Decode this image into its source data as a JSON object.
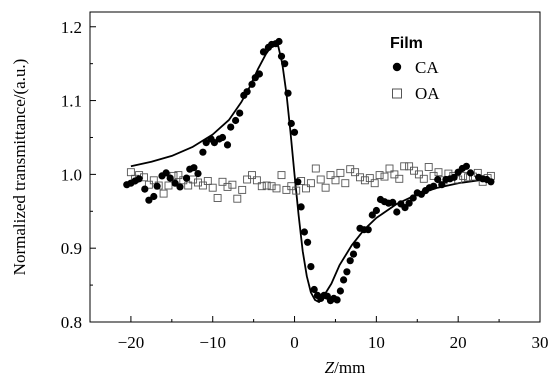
{
  "chart_data": {
    "type": "scatter",
    "xlabel_italic": "Z",
    "xlabel_rest": "/mm",
    "ylabel": "Normalized transmittance/(a.u.)",
    "xlim": [
      -25,
      30
    ],
    "ylim": [
      0.8,
      1.22
    ],
    "x_ticks": [
      -20,
      -10,
      0,
      10,
      20,
      30
    ],
    "x_tick_labels": [
      "−20",
      "−10",
      "0",
      "10",
      "20",
      "30"
    ],
    "y_ticks": [
      0.8,
      0.9,
      1.0,
      1.1,
      1.2
    ],
    "y_tick_labels": [
      "0.8",
      "0.9",
      "1.0",
      "1.1",
      "1.2"
    ],
    "legend": {
      "title": "Film",
      "placement": "top-right",
      "entries": [
        {
          "label": "CA",
          "marker": "filled-circle"
        },
        {
          "label": "OA",
          "marker": "open-square"
        }
      ]
    },
    "series": [
      {
        "name": "CA",
        "marker": "filled-circle",
        "color": "#000000",
        "points": [
          [
            -20.5,
            0.986
          ],
          [
            -20.0,
            0.988
          ],
          [
            -19.5,
            0.991
          ],
          [
            -19.0,
            0.994
          ],
          [
            -18.3,
            0.98
          ],
          [
            -17.8,
            0.965
          ],
          [
            -17.2,
            0.97
          ],
          [
            -16.8,
            0.984
          ],
          [
            -16.2,
            0.998
          ],
          [
            -15.7,
            1.002
          ],
          [
            -15.2,
            0.995
          ],
          [
            -14.6,
            0.988
          ],
          [
            -14.0,
            0.983
          ],
          [
            -13.2,
            0.995
          ],
          [
            -12.8,
            1.007
          ],
          [
            -12.3,
            1.009
          ],
          [
            -11.8,
            1.001
          ],
          [
            -11.2,
            1.03
          ],
          [
            -10.8,
            1.043
          ],
          [
            -10.2,
            1.048
          ],
          [
            -9.8,
            1.043
          ],
          [
            -9.2,
            1.048
          ],
          [
            -8.8,
            1.05
          ],
          [
            -8.2,
            1.04
          ],
          [
            -7.8,
            1.064
          ],
          [
            -7.2,
            1.073
          ],
          [
            -6.7,
            1.083
          ],
          [
            -6.2,
            1.107
          ],
          [
            -5.8,
            1.112
          ],
          [
            -5.2,
            1.122
          ],
          [
            -4.8,
            1.131
          ],
          [
            -4.3,
            1.136
          ],
          [
            -3.8,
            1.166
          ],
          [
            -3.2,
            1.172
          ],
          [
            -2.8,
            1.176
          ],
          [
            -2.3,
            1.177
          ],
          [
            -1.9,
            1.18
          ],
          [
            -1.6,
            1.16
          ],
          [
            -1.2,
            1.15
          ],
          [
            -0.8,
            1.11
          ],
          [
            -0.4,
            1.069
          ],
          [
            0.0,
            1.057
          ],
          [
            0.4,
            0.99
          ],
          [
            0.8,
            0.956
          ],
          [
            1.2,
            0.922
          ],
          [
            1.6,
            0.908
          ],
          [
            2.0,
            0.875
          ],
          [
            2.4,
            0.844
          ],
          [
            2.8,
            0.836
          ],
          [
            3.2,
            0.832
          ],
          [
            3.6,
            0.836
          ],
          [
            4.0,
            0.835
          ],
          [
            4.4,
            0.829
          ],
          [
            4.8,
            0.832
          ],
          [
            5.2,
            0.83
          ],
          [
            5.6,
            0.842
          ],
          [
            6.0,
            0.857
          ],
          [
            6.4,
            0.868
          ],
          [
            6.8,
            0.883
          ],
          [
            7.2,
            0.892
          ],
          [
            7.6,
            0.904
          ],
          [
            8.0,
            0.927
          ],
          [
            8.5,
            0.925
          ],
          [
            9.0,
            0.925
          ],
          [
            9.5,
            0.945
          ],
          [
            10.0,
            0.951
          ],
          [
            10.5,
            0.966
          ],
          [
            11.0,
            0.963
          ],
          [
            11.5,
            0.961
          ],
          [
            12.0,
            0.962
          ],
          [
            12.5,
            0.949
          ],
          [
            13.0,
            0.96
          ],
          [
            13.5,
            0.955
          ],
          [
            14.0,
            0.961
          ],
          [
            14.5,
            0.968
          ],
          [
            15.0,
            0.975
          ],
          [
            15.5,
            0.973
          ],
          [
            16.0,
            0.978
          ],
          [
            16.5,
            0.982
          ],
          [
            17.0,
            0.984
          ],
          [
            17.5,
            0.993
          ],
          [
            18.0,
            0.986
          ],
          [
            18.5,
            0.993
          ],
          [
            19.0,
            0.994
          ],
          [
            19.5,
            0.996
          ],
          [
            20.0,
            1.003
          ],
          [
            20.5,
            1.008
          ],
          [
            21.0,
            1.011
          ],
          [
            21.5,
            1.002
          ],
          [
            22.5,
            0.996
          ],
          [
            23.0,
            0.994
          ],
          [
            23.5,
            0.993
          ],
          [
            24.0,
            0.99
          ]
        ]
      },
      {
        "name": "OA",
        "marker": "open-square",
        "color": "#555555",
        "points": [
          [
            -20.0,
            1.003
          ],
          [
            -19.5,
            0.994
          ],
          [
            -19.0,
            0.999
          ],
          [
            -18.4,
            0.996
          ],
          [
            -17.8,
            0.986
          ],
          [
            -17.2,
            0.992
          ],
          [
            -16.6,
            0.985
          ],
          [
            -16.0,
            0.974
          ],
          [
            -15.4,
            0.985
          ],
          [
            -14.8,
            0.998
          ],
          [
            -14.2,
            0.999
          ],
          [
            -13.6,
            0.992
          ],
          [
            -13.0,
            0.985
          ],
          [
            -12.4,
            0.993
          ],
          [
            -11.8,
            0.989
          ],
          [
            -11.2,
            0.985
          ],
          [
            -10.6,
            0.991
          ],
          [
            -10.0,
            0.982
          ],
          [
            -9.4,
            0.968
          ],
          [
            -8.8,
            0.99
          ],
          [
            -8.2,
            0.983
          ],
          [
            -7.6,
            0.986
          ],
          [
            -7.0,
            0.967
          ],
          [
            -6.4,
            0.979
          ],
          [
            -5.8,
            0.993
          ],
          [
            -5.2,
            0.999
          ],
          [
            -4.6,
            0.992
          ],
          [
            -4.0,
            0.984
          ],
          [
            -3.4,
            0.985
          ],
          [
            -2.8,
            0.984
          ],
          [
            -2.2,
            0.981
          ],
          [
            -1.6,
            0.999
          ],
          [
            -1.0,
            0.979
          ],
          [
            -0.4,
            0.984
          ],
          [
            0.2,
            0.978
          ],
          [
            0.8,
            0.991
          ],
          [
            1.4,
            0.981
          ],
          [
            2.0,
            0.988
          ],
          [
            2.6,
            1.008
          ],
          [
            3.2,
            0.993
          ],
          [
            3.8,
            0.982
          ],
          [
            4.4,
            0.999
          ],
          [
            5.0,
            0.992
          ],
          [
            5.6,
            1.002
          ],
          [
            6.2,
            0.988
          ],
          [
            6.8,
            1.007
          ],
          [
            7.4,
            1.003
          ],
          [
            8.0,
            0.996
          ],
          [
            8.6,
            0.992
          ],
          [
            9.2,
            0.995
          ],
          [
            9.8,
            0.988
          ],
          [
            10.4,
            0.999
          ],
          [
            11.0,
            0.997
          ],
          [
            11.6,
            1.008
          ],
          [
            12.2,
            1.0
          ],
          [
            12.8,
            0.994
          ],
          [
            13.4,
            1.011
          ],
          [
            14.0,
            1.011
          ],
          [
            14.6,
            1.005
          ],
          [
            15.2,
            1.0
          ],
          [
            15.8,
            0.994
          ],
          [
            16.4,
            1.01
          ],
          [
            17.0,
            0.998
          ],
          [
            17.6,
            1.003
          ],
          [
            18.2,
            0.992
          ],
          [
            18.8,
            1.001
          ],
          [
            19.4,
            0.998
          ],
          [
            20.0,
            0.993
          ],
          [
            20.6,
            0.998
          ],
          [
            21.2,
            0.996
          ],
          [
            21.8,
            0.997
          ],
          [
            22.4,
            1.002
          ],
          [
            23.0,
            0.99
          ],
          [
            23.6,
            0.995
          ],
          [
            24.0,
            0.998
          ]
        ]
      },
      {
        "name": "CA fit",
        "style": "solid-line",
        "color": "#000000",
        "points": [
          [
            -20.0,
            1.011
          ],
          [
            -17.5,
            1.017
          ],
          [
            -15.0,
            1.025
          ],
          [
            -12.5,
            1.037
          ],
          [
            -10.0,
            1.054
          ],
          [
            -8.0,
            1.074
          ],
          [
            -6.5,
            1.098
          ],
          [
            -5.5,
            1.118
          ],
          [
            -4.5,
            1.142
          ],
          [
            -3.5,
            1.163
          ],
          [
            -2.8,
            1.174
          ],
          [
            -2.3,
            1.179
          ],
          [
            -2.0,
            1.174
          ],
          [
            -1.5,
            1.15
          ],
          [
            -1.0,
            1.11
          ],
          [
            -0.5,
            1.057
          ],
          [
            0.0,
            1.0
          ],
          [
            0.5,
            0.945
          ],
          [
            1.0,
            0.896
          ],
          [
            1.5,
            0.862
          ],
          [
            2.0,
            0.84
          ],
          [
            2.5,
            0.83
          ],
          [
            3.0,
            0.827
          ],
          [
            3.5,
            0.834
          ],
          [
            4.5,
            0.852
          ],
          [
            5.5,
            0.877
          ],
          [
            7.0,
            0.904
          ],
          [
            8.5,
            0.925
          ],
          [
            10.0,
            0.941
          ],
          [
            12.5,
            0.96
          ],
          [
            15.0,
            0.973
          ],
          [
            17.5,
            0.982
          ],
          [
            20.0,
            0.988
          ],
          [
            22.5,
            0.992
          ],
          [
            24.0,
            0.993
          ]
        ]
      }
    ]
  }
}
